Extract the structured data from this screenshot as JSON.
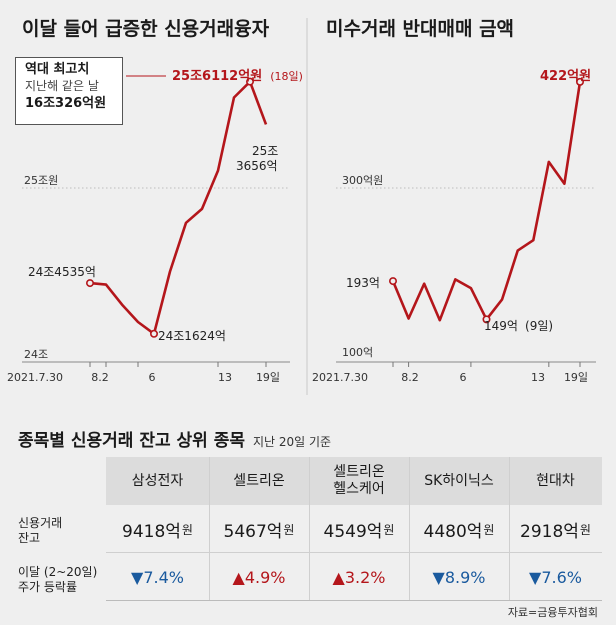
{
  "chart_data": [
    {
      "type": "line",
      "title": "이달 들어 급증한 신용거래융자",
      "x_labels": [
        "2021.7.30",
        "8.2",
        "6",
        "13",
        "19일"
      ],
      "values": [
        24.4535,
        24.445,
        24.33,
        24.23,
        24.162,
        24.52,
        24.8,
        24.88,
        25.1,
        25.52,
        25.6112,
        25.3656
      ],
      "y_ticks": [
        {
          "value": 25,
          "label": "25조원"
        },
        {
          "value": 24,
          "label": "24조"
        }
      ],
      "ylim": [
        24,
        25.8
      ],
      "annotations": {
        "start": "24조4535억",
        "min": "24조1624억",
        "max_main": "25조6112억원",
        "max_date": "(18일)",
        "last_line1": "25조",
        "last_line2": "3656억"
      }
    },
    {
      "type": "line",
      "title": "미수거래 반대매매 금액",
      "x_labels": [
        "2021.7.30",
        "8.2",
        "6",
        "13",
        "19일"
      ],
      "values": [
        193,
        150,
        190,
        148,
        195,
        185,
        149,
        172,
        228,
        240,
        330,
        305,
        422
      ],
      "y_ticks": [
        {
          "value": 300,
          "label": "300억원"
        },
        {
          "value": 100,
          "label": "100억"
        }
      ],
      "ylim": [
        100,
        440
      ],
      "annotations": {
        "start": "193억",
        "min": "149억",
        "min_date": "(9일)",
        "max": "422억원"
      }
    }
  ],
  "callout": {
    "title": "역대 최고치",
    "line2": "지난해 같은 날",
    "line3": "16조326억원"
  },
  "table": {
    "title": "종목별 신용거래 잔고 상위 종목",
    "subtitle": "지난 20일 기준",
    "columns": [
      "삼성전자",
      "셀트리온",
      "셀트리온\n헬스케어",
      "SK하이닉스",
      "현대차"
    ],
    "row1_label": "신용거래\n잔고",
    "balances": [
      "9418억",
      "5467억",
      "4549억",
      "4480억",
      "2918억"
    ],
    "unit": "원",
    "row2_label": "이달 (2~20일)\n주가 등락률",
    "changes": [
      {
        "arrow": "▼",
        "value": "7.4%",
        "dir": "down"
      },
      {
        "arrow": "▲",
        "value": "4.9%",
        "dir": "up"
      },
      {
        "arrow": "▲",
        "value": "3.2%",
        "dir": "up"
      },
      {
        "arrow": "▼",
        "value": "8.9%",
        "dir": "down"
      },
      {
        "arrow": "▼",
        "value": "7.6%",
        "dir": "down"
      }
    ]
  },
  "source": "자료=금융투자협회"
}
